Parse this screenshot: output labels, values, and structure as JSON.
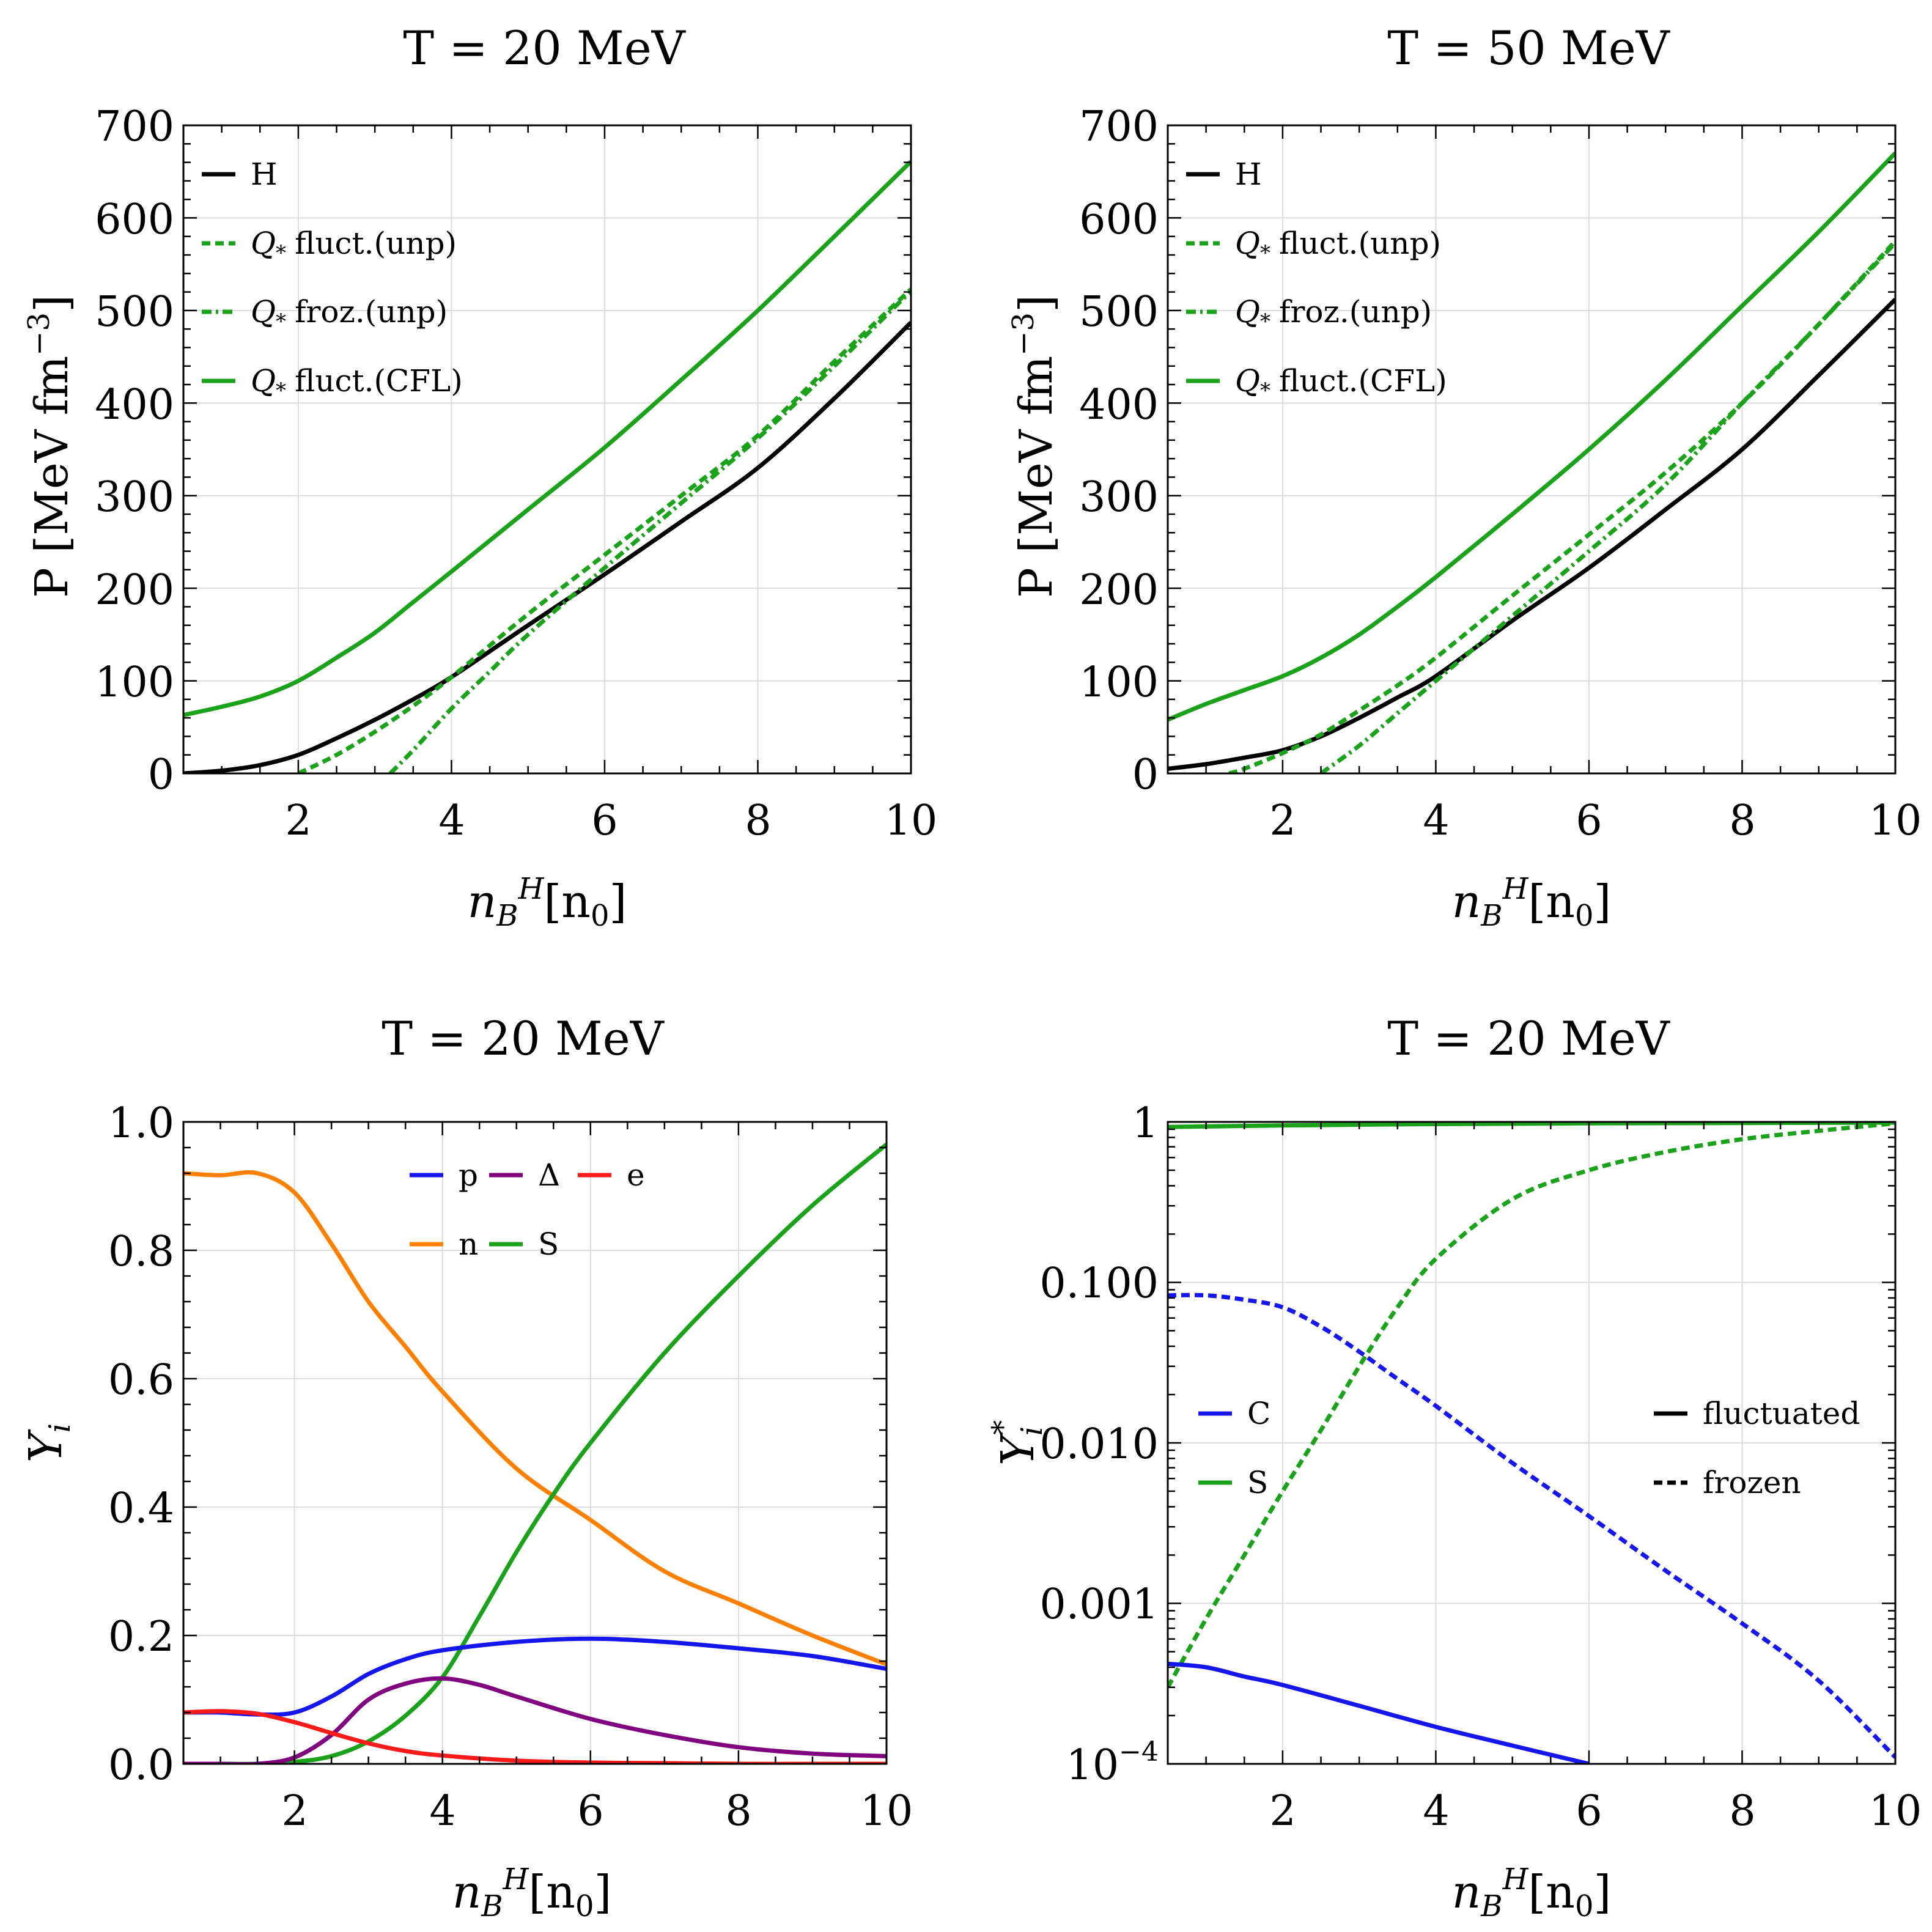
{
  "colors": {
    "black": "#000000",
    "green": "#1aa31a",
    "blue": "#1515f0",
    "purple": "#800080",
    "red": "#ff1a1a",
    "orange": "#ff8000"
  },
  "chart_data": [
    {
      "id": "p20",
      "type": "line",
      "title": "T = 20 MeV",
      "xlabel": "n_B^H [n_0]",
      "ylabel": "P [MeV fm^-3]",
      "xlim": [
        0.5,
        10
      ],
      "ylim": [
        0,
        700
      ],
      "xscale": "linear",
      "yscale": "linear",
      "xticks": [
        2,
        4,
        6,
        8,
        10
      ],
      "xtick_labels": [
        "2",
        "4",
        "6",
        "8",
        "10"
      ],
      "yticks": [
        0,
        100,
        200,
        300,
        400,
        500,
        600,
        700
      ],
      "ytick_labels": [
        "0",
        "100",
        "200",
        "300",
        "400",
        "500",
        "600",
        "700"
      ],
      "legend_position": "top-left",
      "legend": [
        {
          "label": "H",
          "color": "black",
          "dash": "solid"
        },
        {
          "label": "Q* fluct.(unp)",
          "color": "green",
          "dash": "dashed"
        },
        {
          "label": "Q* froz.(unp)",
          "color": "green",
          "dash": "dashdot"
        },
        {
          "label": "Q* fluct.(CFL)",
          "color": "green",
          "dash": "solid"
        }
      ],
      "series": [
        {
          "name": "H",
          "color": "black",
          "dash": "solid",
          "x": [
            0.5,
            1,
            1.5,
            2,
            2.5,
            3,
            3.5,
            4,
            5,
            6,
            7,
            8,
            9,
            10
          ],
          "y": [
            0,
            3,
            9,
            20,
            38,
            58,
            80,
            104,
            160,
            215,
            272,
            330,
            405,
            487
          ]
        },
        {
          "name": "Q* fluct.(unp)",
          "color": "green",
          "dash": "dashed",
          "x": [
            2,
            2.5,
            3,
            3.5,
            4,
            5,
            6,
            7,
            8,
            9,
            10
          ],
          "y": [
            0,
            20,
            45,
            73,
            104,
            172,
            236,
            300,
            365,
            445,
            523
          ]
        },
        {
          "name": "Q* froz.(unp)",
          "color": "green",
          "dash": "dashdot",
          "x": [
            3.2,
            3.5,
            4,
            4.5,
            5,
            6,
            7,
            8,
            9,
            10
          ],
          "y": [
            0,
            25,
            70,
            110,
            150,
            222,
            292,
            362,
            440,
            521
          ]
        },
        {
          "name": "Q* fluct.(CFL)",
          "color": "green",
          "dash": "solid",
          "x": [
            0.5,
            1,
            1.5,
            2,
            2.5,
            3,
            3.5,
            4,
            5,
            6,
            7,
            8,
            9,
            10
          ],
          "y": [
            63,
            72,
            83,
            100,
            125,
            152,
            185,
            218,
            285,
            352,
            425,
            500,
            580,
            661
          ]
        }
      ]
    },
    {
      "id": "p50",
      "type": "line",
      "title": "T = 50 MeV",
      "xlabel": "n_B^H [n_0]",
      "ylabel": "P [MeV fm^-3]",
      "xlim": [
        0.5,
        10
      ],
      "ylim": [
        0,
        700
      ],
      "xscale": "linear",
      "yscale": "linear",
      "xticks": [
        2,
        4,
        6,
        8,
        10
      ],
      "xtick_labels": [
        "2",
        "4",
        "6",
        "8",
        "10"
      ],
      "yticks": [
        0,
        100,
        200,
        300,
        400,
        500,
        600,
        700
      ],
      "ytick_labels": [
        "0",
        "100",
        "200",
        "300",
        "400",
        "500",
        "600",
        "700"
      ],
      "legend_position": "top-left",
      "legend": [
        {
          "label": "H",
          "color": "black",
          "dash": "solid"
        },
        {
          "label": "Q* fluct.(unp)",
          "color": "green",
          "dash": "dashed"
        },
        {
          "label": "Q* froz.(unp)",
          "color": "green",
          "dash": "dashdot"
        },
        {
          "label": "Q* fluct.(CFL)",
          "color": "green",
          "dash": "solid"
        }
      ],
      "series": [
        {
          "name": "H",
          "color": "black",
          "dash": "solid",
          "x": [
            0.5,
            1,
            1.5,
            2,
            2.5,
            3,
            3.5,
            4,
            5,
            6,
            7,
            8,
            9,
            10
          ],
          "y": [
            5,
            10,
            17,
            25,
            40,
            60,
            82,
            105,
            165,
            222,
            285,
            350,
            430,
            512
          ]
        },
        {
          "name": "Q* fluct.(unp)",
          "color": "green",
          "dash": "dashed",
          "x": [
            1.3,
            1.5,
            2,
            2.5,
            3,
            3.5,
            4,
            5,
            6,
            7,
            8,
            9,
            10
          ],
          "y": [
            0,
            5,
            22,
            42,
            68,
            95,
            125,
            192,
            258,
            325,
            400,
            485,
            575
          ]
        },
        {
          "name": "Q* froz.(unp)",
          "color": "green",
          "dash": "dashdot",
          "x": [
            2.5,
            3,
            3.5,
            4,
            4.5,
            5,
            6,
            7,
            8,
            9,
            10
          ],
          "y": [
            0,
            30,
            65,
            100,
            135,
            170,
            240,
            312,
            400,
            485,
            573
          ]
        },
        {
          "name": "Q* fluct.(CFL)",
          "color": "green",
          "dash": "solid",
          "x": [
            0.5,
            1,
            1.5,
            2,
            2.5,
            3,
            3.5,
            4,
            5,
            6,
            7,
            8,
            9,
            10
          ],
          "y": [
            58,
            75,
            90,
            105,
            125,
            150,
            180,
            212,
            280,
            350,
            425,
            505,
            585,
            670
          ]
        }
      ]
    },
    {
      "id": "y20",
      "type": "line",
      "title": "T = 20 MeV",
      "xlabel": "n_B^H [n_0]",
      "ylabel": "Y_i",
      "xlim": [
        0.5,
        10
      ],
      "ylim": [
        0,
        1
      ],
      "xscale": "linear",
      "yscale": "linear",
      "xticks": [
        2,
        4,
        6,
        8,
        10
      ],
      "xtick_labels": [
        "2",
        "4",
        "6",
        "8",
        "10"
      ],
      "yticks": [
        0,
        0.2,
        0.4,
        0.6,
        0.8,
        1.0
      ],
      "ytick_labels": [
        "0.0",
        "0.2",
        "0.4",
        "0.6",
        "0.8",
        "1.0"
      ],
      "legend_position": "top-center",
      "legend": [
        {
          "label": "p",
          "color": "blue",
          "dash": "solid"
        },
        {
          "label": "Δ",
          "color": "purple",
          "dash": "solid"
        },
        {
          "label": "e",
          "color": "red",
          "dash": "solid"
        },
        {
          "label": "n",
          "color": "orange",
          "dash": "solid"
        },
        {
          "label": "S",
          "color": "green",
          "dash": "solid"
        }
      ],
      "series": [
        {
          "name": "n",
          "color": "orange",
          "dash": "solid",
          "x": [
            0.5,
            1,
            1.5,
            2,
            2.5,
            3,
            3.5,
            4,
            5,
            6,
            7,
            8,
            9,
            10
          ],
          "y": [
            0.92,
            0.917,
            0.92,
            0.89,
            0.81,
            0.72,
            0.65,
            0.58,
            0.46,
            0.38,
            0.3,
            0.25,
            0.2,
            0.155
          ]
        },
        {
          "name": "S",
          "color": "green",
          "dash": "solid",
          "x": [
            0.5,
            1,
            1.5,
            2,
            2.5,
            3,
            3.5,
            4,
            4.5,
            5,
            5.5,
            6,
            7,
            8,
            9,
            10
          ],
          "y": [
            0,
            0,
            0,
            0.003,
            0.012,
            0.035,
            0.075,
            0.135,
            0.23,
            0.33,
            0.42,
            0.5,
            0.64,
            0.76,
            0.87,
            0.965
          ]
        },
        {
          "name": "p",
          "color": "blue",
          "dash": "solid",
          "x": [
            0.5,
            1,
            1.5,
            2,
            2.5,
            3,
            3.5,
            4,
            5,
            6,
            7,
            8,
            9,
            10
          ],
          "y": [
            0.08,
            0.08,
            0.077,
            0.08,
            0.105,
            0.14,
            0.163,
            0.177,
            0.19,
            0.195,
            0.19,
            0.18,
            0.168,
            0.148
          ]
        },
        {
          "name": "Δ",
          "color": "purple",
          "dash": "solid",
          "x": [
            0.5,
            1,
            1.5,
            2,
            2.5,
            3,
            3.5,
            4,
            4.5,
            5,
            6,
            7,
            8,
            9,
            10
          ],
          "y": [
            0,
            0,
            0,
            0.01,
            0.045,
            0.1,
            0.125,
            0.133,
            0.123,
            0.105,
            0.07,
            0.045,
            0.026,
            0.016,
            0.012
          ]
        },
        {
          "name": "e",
          "color": "red",
          "dash": "solid",
          "x": [
            0.5,
            1,
            1.5,
            2,
            2.5,
            3,
            3.5,
            4,
            5,
            6,
            7,
            8,
            9,
            10
          ],
          "y": [
            0.08,
            0.082,
            0.078,
            0.065,
            0.048,
            0.032,
            0.02,
            0.013,
            0.005,
            0.002,
            0.001,
            0,
            0,
            0
          ]
        }
      ]
    },
    {
      "id": "ys20",
      "type": "line",
      "title": "T = 20 MeV",
      "xlabel": "n_B^H [n_0]",
      "ylabel": "Y_i^*",
      "xlim": [
        0.5,
        10
      ],
      "ylim": [
        0.0001,
        1
      ],
      "xscale": "linear",
      "yscale": "log",
      "xticks": [
        2,
        4,
        6,
        8,
        10
      ],
      "xtick_labels": [
        "2",
        "4",
        "6",
        "8",
        "10"
      ],
      "yticks": [
        0.0001,
        0.001,
        0.01,
        0.1,
        1
      ],
      "ytick_labels": [
        "10^-4",
        "0.001",
        "0.010",
        "0.100",
        "1"
      ],
      "legend_position": "left-center and right-center",
      "legend": [
        {
          "label": "C",
          "color": "blue",
          "dash": "solid"
        },
        {
          "label": "S",
          "color": "green",
          "dash": "solid"
        },
        {
          "label": "fluctuated",
          "color": "black",
          "dash": "solid"
        },
        {
          "label": "frozen",
          "color": "black",
          "dash": "dashed"
        }
      ],
      "series": [
        {
          "name": "S fluctuated",
          "color": "green",
          "dash": "solid",
          "x": [
            0.5,
            2,
            4,
            6,
            8,
            10
          ],
          "y": [
            0.93,
            0.95,
            0.97,
            0.98,
            0.985,
            0.99
          ]
        },
        {
          "name": "S frozen",
          "color": "green",
          "dash": "dashed",
          "x": [
            0.5,
            1,
            1.5,
            2,
            2.5,
            3,
            3.5,
            4,
            5,
            6,
            7,
            8,
            9,
            10
          ],
          "y": [
            0.0003,
            0.0008,
            0.002,
            0.005,
            0.012,
            0.03,
            0.07,
            0.14,
            0.33,
            0.5,
            0.65,
            0.78,
            0.88,
            0.98
          ]
        },
        {
          "name": "C frozen",
          "color": "blue",
          "dash": "dashed",
          "x": [
            0.5,
            1,
            1.5,
            2,
            2.5,
            3,
            3.5,
            4,
            5,
            6,
            7,
            8,
            9,
            10
          ],
          "y": [
            0.083,
            0.083,
            0.078,
            0.07,
            0.053,
            0.037,
            0.025,
            0.017,
            0.0075,
            0.0035,
            0.0016,
            0.00075,
            0.00033,
            0.00011
          ]
        },
        {
          "name": "C fluctuated",
          "color": "blue",
          "dash": "solid",
          "x": [
            0.5,
            1,
            1.5,
            2,
            3,
            4,
            5,
            6
          ],
          "y": [
            0.00042,
            0.0004,
            0.00035,
            0.00031,
            0.00023,
            0.00017,
            0.00013,
            0.0001
          ]
        }
      ]
    }
  ],
  "panels": [
    {
      "title": "T = 20 MeV",
      "xlabel": "[n",
      "ylabel": "P [MeV fm",
      "ylabel_sup": "−3",
      "ylabel_end": "]",
      "legend": [
        "H",
        "fluct.(unp)",
        "froz.(unp)",
        "fluct.(CFL)"
      ],
      "xticks": [
        "2",
        "4",
        "6",
        "8",
        "10"
      ],
      "yticks": [
        "0",
        "100",
        "200",
        "300",
        "400",
        "500",
        "600",
        "700"
      ]
    },
    {
      "title": "T = 50 MeV",
      "xlabel": "[n",
      "ylabel": "P [MeV fm",
      "ylabel_sup": "−3",
      "ylabel_end": "]",
      "legend": [
        "H",
        "fluct.(unp)",
        "froz.(unp)",
        "fluct.(CFL)"
      ],
      "xticks": [
        "2",
        "4",
        "6",
        "8",
        "10"
      ],
      "yticks": [
        "0",
        "100",
        "200",
        "300",
        "400",
        "500",
        "600",
        "700"
      ]
    },
    {
      "title": "T = 20 MeV",
      "xlabel": "[n",
      "ylabel": "Y",
      "legend": [
        "p",
        "Δ",
        "e",
        "n",
        "S"
      ],
      "xticks": [
        "2",
        "4",
        "6",
        "8",
        "10"
      ],
      "yticks": [
        "0.0",
        "0.2",
        "0.4",
        "0.6",
        "0.8",
        "1.0"
      ]
    },
    {
      "title": "T = 20 MeV",
      "xlabel": "[n",
      "ylabel": "Y",
      "legend": [
        "C",
        "S",
        "fluctuated",
        "frozen"
      ],
      "xticks": [
        "2",
        "4",
        "6",
        "8",
        "10"
      ],
      "yticks": [
        "10",
        "0.001",
        "0.010",
        "0.100",
        "1"
      ]
    }
  ]
}
